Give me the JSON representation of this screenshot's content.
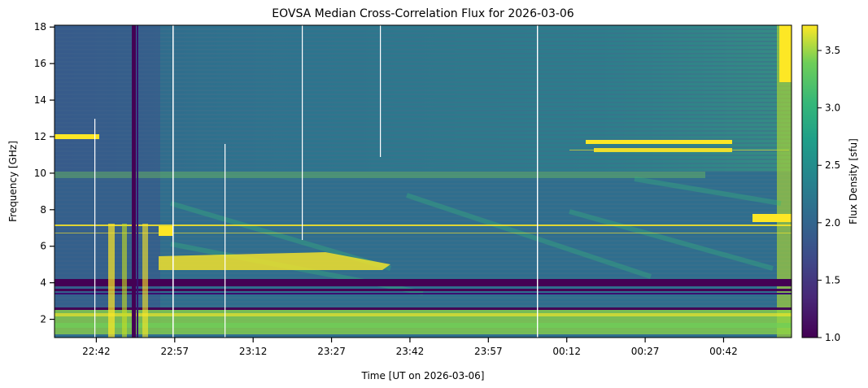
{
  "chart_data": {
    "type": "heatmap",
    "title": "EOVSA Median Cross-Correlation Flux for 2026-03-06",
    "xlabel": "Time [UT on 2026-03-06]",
    "ylabel": "Frequency [GHz]",
    "colorbar_label": "Flux Density [sfu]",
    "colormap": "viridis",
    "x_ticks": [
      "22:42",
      "22:57",
      "23:12",
      "23:27",
      "23:42",
      "23:57",
      "00:12",
      "00:27",
      "00:42"
    ],
    "x_range": [
      "22:34",
      "00:55"
    ],
    "y_ticks": [
      2,
      4,
      6,
      8,
      10,
      12,
      14,
      16,
      18
    ],
    "y_range": [
      1.0,
      18.1
    ],
    "colorbar_ticks": [
      1.0,
      1.5,
      2.0,
      2.5,
      3.0,
      3.5
    ],
    "colorbar_range": [
      1.0,
      3.72
    ],
    "colors": {
      "viridis_low": "#440154",
      "viridis_mid": "#21918c",
      "viridis_high": "#fde725",
      "background": "#2f6e8e"
    }
  }
}
